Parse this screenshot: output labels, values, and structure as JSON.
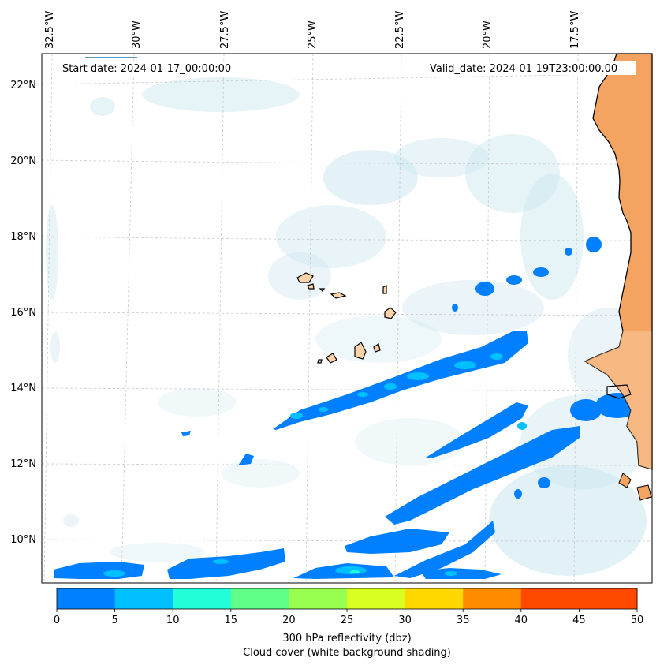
{
  "map": {
    "lon_labels": [
      "32.5°W",
      "30°W",
      "27.5°W",
      "25°W",
      "22.5°W",
      "20°W",
      "17.5°W"
    ],
    "lat_labels": [
      "22°N",
      "20°N",
      "18°N",
      "16°N",
      "14°N",
      "12°N",
      "10°N"
    ],
    "start_date": "Start date: 2024-01-17_00:00:00",
    "valid_date": "Valid_date: 2024-01-19T23:00:00.00"
  },
  "colorbar": {
    "ticks": [
      "0",
      "5",
      "10",
      "15",
      "20",
      "25",
      "30",
      "35",
      "40",
      "45",
      "50"
    ],
    "colors": [
      "#0080ff",
      "#00c0ff",
      "#20ffd8",
      "#60ff88",
      "#98ff50",
      "#d8ff20",
      "#ffd800",
      "#ff8c00",
      "#ff4800",
      "#ff4800"
    ],
    "label_line1": "300 hPa reflectivity (dbz)",
    "label_line2": "Cloud cover (white background shading)"
  },
  "colors": {
    "land": "#f4a460",
    "land_light": "#f8c79a",
    "island": "#ffd3a8",
    "cloud": "#cde7f0",
    "refl_low": "#0080ff",
    "refl_mid": "#00c0ff",
    "refl_high": "#20ffd8"
  }
}
